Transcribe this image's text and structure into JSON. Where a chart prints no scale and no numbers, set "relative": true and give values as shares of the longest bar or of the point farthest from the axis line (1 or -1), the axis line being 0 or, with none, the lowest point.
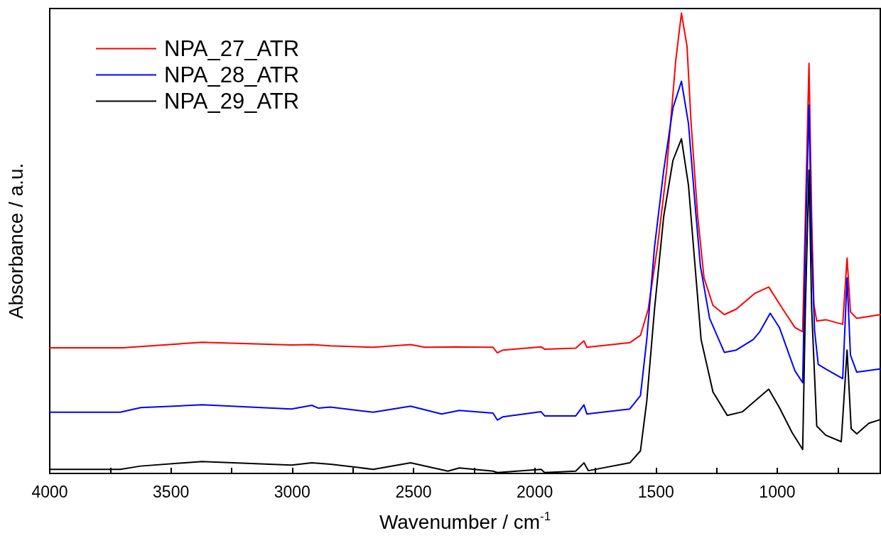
{
  "chart_data": {
    "type": "line",
    "relative": true,
    "xlabel": "Wavenumber / cm$^{-1}$",
    "ylabel": "Absorbance / a.u.",
    "xlim": [
      4000,
      575
    ],
    "xticks": [
      4000,
      {
        "value": 3750,
        "label": null
      },
      3500,
      {
        "value": 3250,
        "label": null
      },
      3000,
      {
        "value": 2750,
        "label": null
      },
      2500,
      {
        "value": 2250,
        "label": null
      },
      2000,
      {
        "value": 1750,
        "label": null
      },
      1500,
      {
        "value": 1250,
        "label": null
      },
      1000,
      {
        "value": 750,
        "label": null
      }
    ],
    "tick_labels": "x",
    "grid": false,
    "legend": "top left",
    "marker": "none",
    "line_style": "solid",
    "series": [
      {
        "name": "NPA_27_ATR",
        "color": "#ff0000",
        "x": [
          4000,
          3700,
          3372,
          3003,
          2919,
          2843,
          2666,
          2512,
          2453,
          2326,
          2172,
          2154,
          2131,
          1974,
          1959,
          1831,
          1797,
          1785,
          1608,
          1564,
          1532,
          1494,
          1456,
          1419,
          1395,
          1372,
          1355,
          1328,
          1302,
          1265,
          1218,
          1169,
          1093,
          1035,
          977,
          927,
          895,
          884,
          869,
          858,
          849,
          837,
          800,
          730,
          712,
          698,
          672,
          575
        ],
        "values": [
          0.273,
          0.273,
          0.285,
          0.279,
          0.28,
          0.277,
          0.274,
          0.28,
          0.274,
          0.275,
          0.274,
          0.262,
          0.268,
          0.275,
          0.27,
          0.272,
          0.288,
          0.274,
          0.284,
          0.3,
          0.357,
          0.492,
          0.659,
          0.894,
          1,
          0.928,
          0.76,
          0.559,
          0.425,
          0.365,
          0.345,
          0.357,
          0.391,
          0.405,
          0.357,
          0.317,
          0.308,
          0.559,
          0.891,
          0.559,
          0.368,
          0.331,
          0.334,
          0.324,
          0.468,
          0.351,
          0.337,
          0.345
        ]
      },
      {
        "name": "NPA_28_ATR",
        "color": "#0000ff",
        "x": [
          4000,
          3709,
          3625,
          3372,
          3003,
          2919,
          2893,
          2843,
          2666,
          2512,
          2384,
          2311,
          2172,
          2154,
          2131,
          1974,
          1959,
          1831,
          1797,
          1785,
          1608,
          1564,
          1538,
          1506,
          1468,
          1430,
          1395,
          1366,
          1340,
          1317,
          1279,
          1218,
          1169,
          1099,
          1073,
          1029,
          991,
          927,
          895,
          884,
          869,
          858,
          846,
          831,
          800,
          730,
          712,
          698,
          672,
          575
        ],
        "values": [
          0.133,
          0.133,
          0.143,
          0.149,
          0.14,
          0.148,
          0.142,
          0.144,
          0.133,
          0.146,
          0.129,
          0.137,
          0.131,
          0.116,
          0.123,
          0.134,
          0.125,
          0.125,
          0.149,
          0.129,
          0.14,
          0.169,
          0.291,
          0.492,
          0.659,
          0.794,
          0.852,
          0.76,
          0.592,
          0.451,
          0.337,
          0.263,
          0.268,
          0.291,
          0.307,
          0.348,
          0.317,
          0.223,
          0.197,
          0.492,
          0.8,
          0.492,
          0.311,
          0.237,
          0.227,
          0.206,
          0.425,
          0.257,
          0.22,
          0.227
        ]
      },
      {
        "name": "NPA_29_ATR",
        "color": "#000000",
        "x": [
          4000,
          3709,
          3625,
          3372,
          3003,
          2919,
          2843,
          2666,
          2512,
          2358,
          2311,
          2172,
          2154,
          1974,
          1959,
          1831,
          1797,
          1779,
          1608,
          1564,
          1538,
          1506,
          1468,
          1430,
          1395,
          1366,
          1340,
          1314,
          1265,
          1206,
          1143,
          1093,
          1035,
          991,
          939,
          895,
          884,
          869,
          858,
          837,
          800,
          736,
          712,
          695,
          672,
          622,
          575
        ],
        "values": [
          0.009,
          0.009,
          0.016,
          0.026,
          0.018,
          0.023,
          0.02,
          0.009,
          0.023,
          0.005,
          0.012,
          0.005,
          0.002,
          0.009,
          0.002,
          0.005,
          0.023,
          0.006,
          0.023,
          0.049,
          0.157,
          0.357,
          0.559,
          0.68,
          0.727,
          0.626,
          0.458,
          0.291,
          0.177,
          0.126,
          0.134,
          0.157,
          0.183,
          0.143,
          0.089,
          0.052,
          0.357,
          0.659,
          0.357,
          0.103,
          0.083,
          0.069,
          0.268,
          0.097,
          0.086,
          0.109,
          0.117
        ]
      }
    ]
  }
}
